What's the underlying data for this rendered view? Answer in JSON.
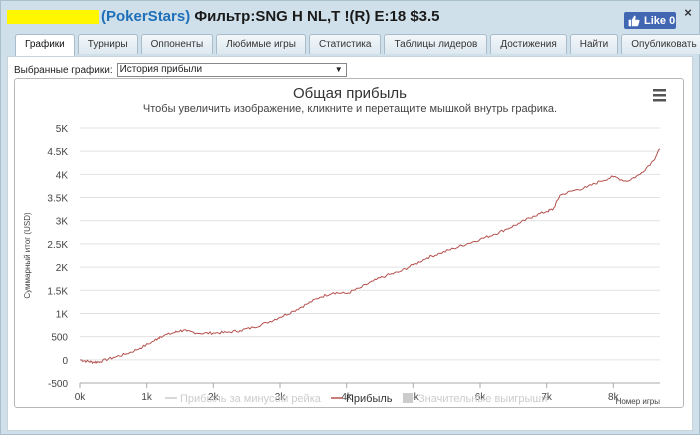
{
  "window": {
    "title_site": "(PokerStars)",
    "title_rest": " Фильтр:SNG H NL,T !(R) E:18 $3.5",
    "like_label": "Like 0",
    "close_label": "×"
  },
  "tabs": [
    {
      "label": "Графики",
      "active": true
    },
    {
      "label": "Турниры",
      "active": false
    },
    {
      "label": "Оппоненты",
      "active": false
    },
    {
      "label": "Любимые игры",
      "active": false
    },
    {
      "label": "Статистика",
      "active": false
    },
    {
      "label": "Таблицы лидеров",
      "active": false
    },
    {
      "label": "Достижения",
      "active": false
    },
    {
      "label": "Найти",
      "active": false
    },
    {
      "label": "Опубликовать",
      "active": false
    }
  ],
  "selector": {
    "label": "Выбранные графики:",
    "value": "История прибыли"
  },
  "chart_data": {
    "type": "line",
    "title": "Общая прибыль",
    "subtitle": "Чтобы увеличить изображение, кликните и перетащите мышкой внутрь графика.",
    "xlabel": "Номер игры",
    "ylabel": "Суммарный итог (USD)",
    "xlim": [
      0,
      8700
    ],
    "ylim": [
      -500,
      5000
    ],
    "x_ticks": [
      "0k",
      "1k",
      "2k",
      "3k",
      "4k",
      "5k",
      "6k",
      "7k",
      "8k"
    ],
    "y_ticks": [
      "-500",
      "0",
      "500",
      "1K",
      "1.5K",
      "2K",
      "2.5K",
      "3K",
      "3.5K",
      "4K",
      "4.5K",
      "5K"
    ],
    "grid": true,
    "legend_position": "bottom",
    "legend": [
      {
        "name": "Прибыль за минусом рейка",
        "enabled": false,
        "color": "#cccccc"
      },
      {
        "name": "Прибыль",
        "enabled": true,
        "color": "#b5524f"
      },
      {
        "name": "Значительные выигрыши",
        "enabled": false,
        "color": "#cccccc"
      }
    ],
    "series": [
      {
        "name": "Прибыль",
        "color": "#b5524f",
        "x": [
          0,
          100,
          200,
          300,
          500,
          700,
          900,
          1100,
          1200,
          1400,
          1500,
          1600,
          1800,
          2000,
          2200,
          2400,
          2600,
          2800,
          3000,
          3200,
          3400,
          3600,
          3800,
          4000,
          4200,
          4400,
          4600,
          4800,
          5000,
          5200,
          5400,
          5600,
          5800,
          6000,
          6200,
          6400,
          6600,
          6800,
          7000,
          7100,
          7200,
          7400,
          7600,
          7800,
          8000,
          8200,
          8400,
          8600,
          8700
        ],
        "values": [
          0,
          -30,
          -50,
          -40,
          50,
          130,
          250,
          400,
          500,
          580,
          630,
          620,
          570,
          580,
          590,
          630,
          700,
          800,
          920,
          1050,
          1200,
          1350,
          1450,
          1430,
          1550,
          1700,
          1820,
          1900,
          2050,
          2200,
          2300,
          2400,
          2500,
          2600,
          2700,
          2820,
          2950,
          3100,
          3200,
          3250,
          3550,
          3650,
          3720,
          3850,
          3950,
          3850,
          4000,
          4300,
          4550
        ]
      }
    ]
  },
  "colors": {
    "accent": "#1f6fb8",
    "line": "#b5524f",
    "frame": "#cfe0ea"
  }
}
